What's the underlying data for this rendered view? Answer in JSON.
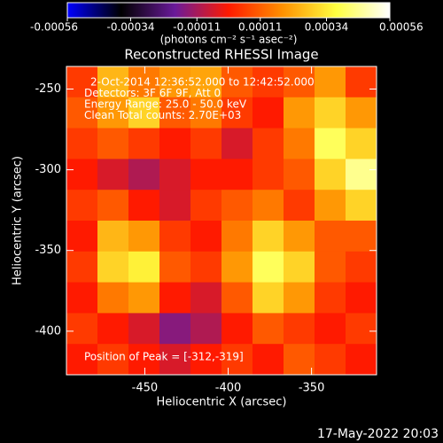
{
  "chart_data": {
    "type": "heatmap",
    "title": "Reconstructed RHESSI Image",
    "colorbar_label": "(photons cm⁻² s⁻¹ asec⁻²)",
    "colorbar_lim": [
      -0.00056,
      0.00056
    ],
    "colorbar_ticks": [
      -0.00056,
      -0.00034,
      -0.00011,
      0.00011,
      0.00034,
      0.00056
    ],
    "colors": [
      "#0000ff",
      "#000000",
      "#6a1a9a",
      "#ff1a00",
      "#ff9000",
      "#ffff40",
      "#ffffff"
    ],
    "xlabel": "Heliocentric X (arcsec)",
    "ylabel": "Heliocentric Y (arcsec)",
    "xlim": [
      -497,
      -311
    ],
    "ylim": [
      -427,
      -236
    ],
    "xticks": [
      -450,
      -400,
      -350
    ],
    "yticks": [
      -400,
      -350,
      -300,
      -250
    ],
    "annotations": [
      "2-Oct-2014 12:36:52.000 to 12:42:52.000",
      "Detectors: 3F 6F 9F, Att 0",
      "Energy Range: 25.0 - 50.0 keV",
      "Clean     Total counts: 2.70E+03"
    ],
    "peak_note": "Position of Peak = [-312,-319]",
    "timestamp": "17-May-2022 20:03",
    "z": [
      [
        5e-05,
        0.00025,
        0.00015,
        0.0002,
        0.00022,
        0.0001,
        5e-05,
        0.0001,
        0.0002,
        5e-05
      ],
      [
        0.0001,
        0.0002,
        0.0003,
        0.0001,
        0.00015,
        5e-05,
        0.0,
        0.0002,
        0.0003,
        0.0002
      ],
      [
        5e-05,
        0.0001,
        5e-05,
        0.0,
        5e-05,
        -5e-05,
        5e-05,
        0.00015,
        0.0004,
        0.0003
      ],
      [
        0.0,
        -5e-05,
        -0.0001,
        -5e-05,
        0.0,
        0.0,
        5e-05,
        0.0001,
        0.0003,
        0.00045
      ],
      [
        5e-05,
        0.0001,
        0.0,
        -5e-05,
        5e-05,
        0.0001,
        0.00015,
        5e-05,
        0.0002,
        0.0003
      ],
      [
        0.0,
        0.00025,
        0.0002,
        5e-05,
        0.0,
        0.00015,
        0.0003,
        0.0002,
        0.0001,
        0.0001
      ],
      [
        5e-05,
        0.0003,
        0.00035,
        0.0001,
        5e-05,
        0.0002,
        0.0004,
        0.0003,
        0.0001,
        5e-05
      ],
      [
        0.0,
        0.00015,
        0.0002,
        0.0,
        -5e-05,
        0.0001,
        0.0003,
        0.0002,
        5e-05,
        0.0
      ],
      [
        5e-05,
        0.0,
        -5e-05,
        -0.00015,
        -0.0001,
        0.0,
        0.0001,
        5e-05,
        0.0,
        5e-05
      ],
      [
        0.0,
        5e-05,
        0.0,
        -5e-05,
        0.0,
        5e-05,
        0.0,
        0.0001,
        5e-05,
        0.0
      ]
    ]
  }
}
